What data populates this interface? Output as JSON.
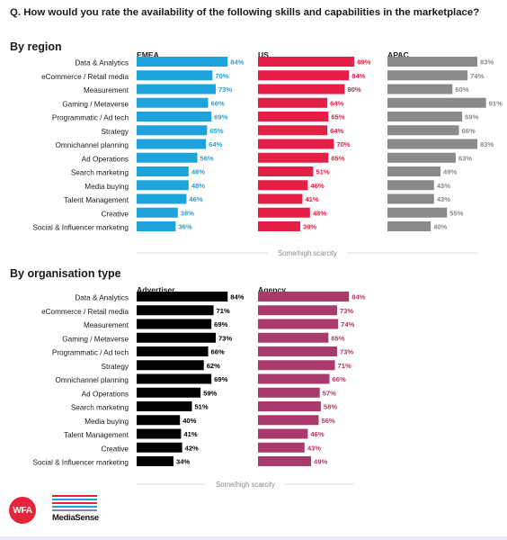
{
  "question": "Q. How would you rate the availability of the following skills and capabilities in the marketplace?",
  "sections": {
    "region_title": "By region",
    "org_title": "By organisation type"
  },
  "chart_data": [
    {
      "type": "bar",
      "orientation": "horizontal",
      "title": "By region",
      "footnote": "Some/high scarcity",
      "categories": [
        "Data & Analytics",
        "eCommerce / Retail media",
        "Measurement",
        "Gaming / Metaverse",
        "Programmatic / Ad tech",
        "Strategy",
        "Omnichannel planning",
        "Ad Operations",
        "Search marketing",
        "Media buying",
        "Talent Management",
        "Creative",
        "Social & Influencer marketing"
      ],
      "series": [
        {
          "name": "EMEA",
          "color": "#1fa3dd",
          "values": [
            84,
            70,
            73,
            66,
            69,
            65,
            64,
            56,
            48,
            48,
            46,
            38,
            36
          ]
        },
        {
          "name": "US",
          "color": "#e41e44",
          "values": [
            89,
            84,
            80,
            64,
            65,
            64,
            70,
            65,
            51,
            46,
            41,
            48,
            39
          ]
        },
        {
          "name": "APAC",
          "color": "#8a8a8a",
          "values": [
            83,
            74,
            60,
            91,
            69,
            66,
            83,
            63,
            49,
            43,
            43,
            55,
            40
          ]
        }
      ],
      "value_format": "percent"
    },
    {
      "type": "bar",
      "orientation": "horizontal",
      "title": "By organisation type",
      "footnote": "Some/high scarcity",
      "categories": [
        "Data & Analytics",
        "eCommerce / Retail media",
        "Measurement",
        "Gaming / Metaverse",
        "Programmatic / Ad tech",
        "Strategy",
        "Omnichannel planning",
        "Ad Operations",
        "Search marketing",
        "Media buying",
        "Talent Management",
        "Creative",
        "Social & Influencer marketing"
      ],
      "series": [
        {
          "name": "Advertiser",
          "color": "#000000",
          "values": [
            84,
            71,
            69,
            73,
            66,
            62,
            69,
            59,
            51,
            40,
            41,
            42,
            34
          ]
        },
        {
          "name": "Agency",
          "color": "#a83a6c",
          "values": [
            84,
            73,
            74,
            65,
            73,
            71,
            66,
            57,
            58,
            56,
            46,
            43,
            49
          ]
        }
      ],
      "value_format": "percent"
    }
  ],
  "logos": {
    "wfa": "WFA",
    "mediasense": "MediaSense"
  }
}
